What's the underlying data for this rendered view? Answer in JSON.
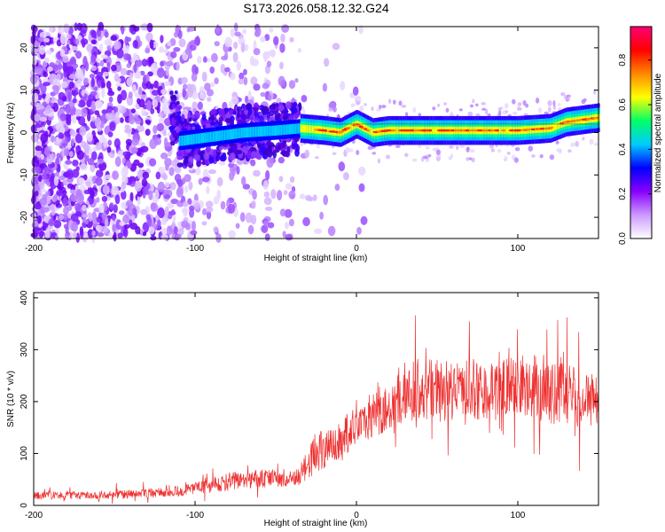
{
  "page": {
    "title": "S173.2026.058.12.32.G24"
  },
  "chart_data": [
    {
      "type": "heatmap",
      "title": "S173.2026.058.12.32.G24",
      "xlabel": "Height of straight line (km)",
      "ylabel": "Frequency (Hz)",
      "xlim": [
        -200,
        150
      ],
      "ylim": [
        -25,
        25
      ],
      "xticks": [
        -200,
        -100,
        0,
        100
      ],
      "xtick_labels": [
        "-200",
        "-100",
        "0",
        "100"
      ],
      "yticks": [
        -20,
        -10,
        0,
        10,
        20
      ],
      "ytick_labels": [
        "-20",
        "-10",
        "0",
        "10",
        "20"
      ],
      "colorbar": {
        "label": "Normalized spectral amplitude",
        "range": [
          0.0,
          0.95
        ],
        "ticks": [
          0.0,
          0.2,
          0.4,
          0.6,
          0.8
        ],
        "tick_labels": [
          "0.0",
          "0.2",
          "0.4",
          "0.6",
          "0.8"
        ],
        "colors": [
          "#ffffff",
          "#cc99ff",
          "#8800ff",
          "#0000ff",
          "#00ccff",
          "#00ff66",
          "#ffff00",
          "#ff8800",
          "#ff0000",
          "#ff0077"
        ]
      },
      "ridge": {
        "description_x": [
          -110,
          -90,
          -70,
          -50,
          -35,
          -20,
          -10,
          0,
          10,
          20,
          40,
          60,
          80,
          100,
          120,
          130,
          150
        ],
        "frequency_hz": [
          -2,
          -1,
          0,
          0.5,
          1,
          0.5,
          0,
          2,
          0,
          0.5,
          0.5,
          0.5,
          0.5,
          0.5,
          1,
          2.5,
          3.5
        ]
      }
    },
    {
      "type": "line",
      "xlabel": "Height of straight line (km)",
      "ylabel": "SNR (10 * v/v)",
      "xlim": [
        -200,
        150
      ],
      "ylim": [
        0,
        410
      ],
      "xticks": [
        -200,
        -100,
        0,
        100
      ],
      "xtick_labels": [
        "-200",
        "-100",
        "0",
        "100"
      ],
      "yticks": [
        0,
        100,
        200,
        300,
        400
      ],
      "ytick_labels": [
        "0",
        "100",
        "200",
        "300",
        "400"
      ],
      "color": "#ee3030",
      "series": [
        {
          "name": "SNR",
          "x": [
            -200,
            -180,
            -160,
            -140,
            -120,
            -110,
            -100,
            -90,
            -80,
            -70,
            -60,
            -50,
            -40,
            -35,
            -30,
            -25,
            -20,
            -15,
            -10,
            -5,
            0,
            5,
            10,
            15,
            20,
            25,
            30,
            40,
            50,
            60,
            70,
            80,
            90,
            100,
            110,
            120,
            130,
            140,
            150
          ],
          "y": [
            20,
            20,
            20,
            22,
            25,
            28,
            32,
            38,
            45,
            50,
            52,
            53,
            50,
            60,
            80,
            100,
            110,
            120,
            130,
            140,
            155,
            160,
            165,
            175,
            190,
            210,
            220,
            225,
            220,
            225,
            225,
            220,
            225,
            235,
            230,
            215,
            215,
            205,
            200
          ],
          "spread": [
            15,
            15,
            15,
            15,
            18,
            20,
            22,
            28,
            32,
            32,
            32,
            30,
            28,
            40,
            55,
            65,
            70,
            70,
            70,
            70,
            60,
            55,
            60,
            70,
            80,
            100,
            110,
            110,
            110,
            110,
            110,
            110,
            110,
            110,
            110,
            110,
            110,
            100,
            90
          ]
        }
      ]
    }
  ]
}
